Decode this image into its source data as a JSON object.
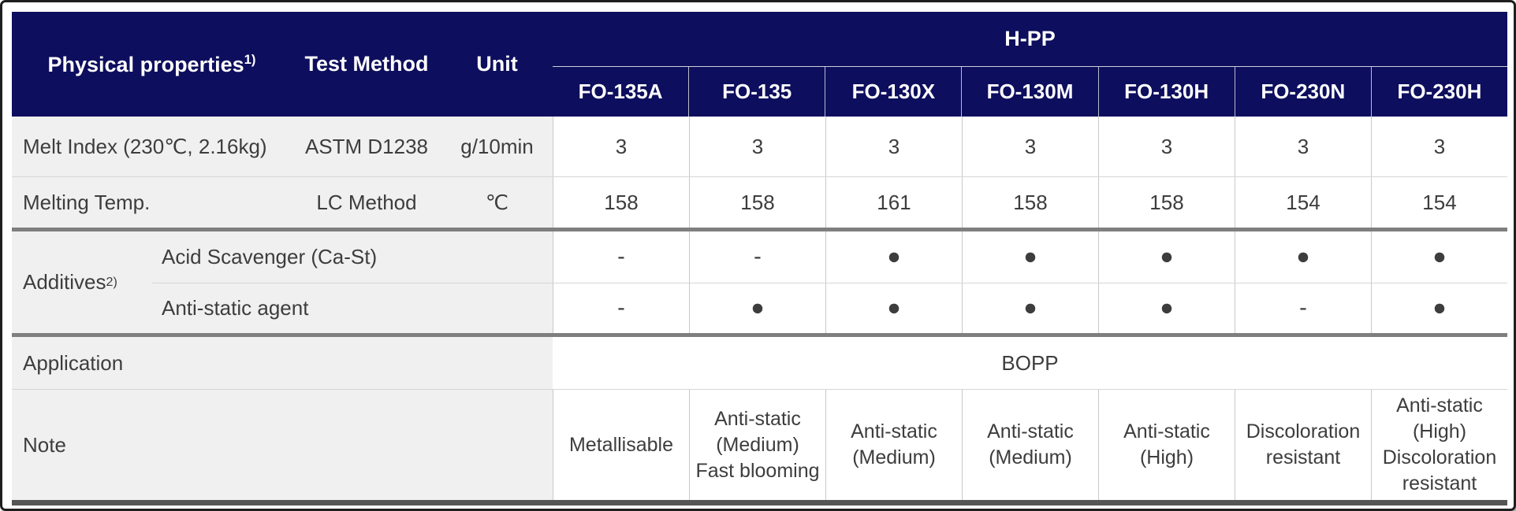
{
  "table": {
    "header": {
      "physical_properties": "Physical properties",
      "physical_properties_sup": "1)",
      "test_method": "Test Method",
      "unit": "Unit",
      "group": "H-PP",
      "grades": [
        "FO-135A",
        "FO-135",
        "FO-130X",
        "FO-130M",
        "FO-130H",
        "FO-230N",
        "FO-230H"
      ]
    },
    "rows": [
      {
        "property": "Melt Index (230℃, 2.16kg)",
        "method": "ASTM D1238",
        "unit": "g/10min",
        "values": [
          "3",
          "3",
          "3",
          "3",
          "3",
          "3",
          "3"
        ]
      },
      {
        "property": "Melting Temp.",
        "method": "LC Method",
        "unit": "℃",
        "values": [
          "158",
          "158",
          "161",
          "158",
          "158",
          "154",
          "154"
        ]
      }
    ],
    "additives": {
      "label": "Additives",
      "label_sup": "2)",
      "rows": [
        {
          "name": "Acid Scavenger (Ca-St)",
          "values": [
            "-",
            "-",
            "●",
            "●",
            "●",
            "●",
            "●"
          ]
        },
        {
          "name": "Anti-static agent",
          "values": [
            "-",
            "●",
            "●",
            "●",
            "●",
            "-",
            "●"
          ]
        }
      ]
    },
    "application": {
      "label": "Application",
      "value": "BOPP"
    },
    "note": {
      "label": "Note",
      "values": [
        "Metallisable",
        "Anti-static\n(Medium)\nFast blooming",
        "Anti-static\n(Medium)",
        "Anti-static\n(Medium)",
        "Anti-static\n(High)",
        "Discoloration\nresistant",
        "Anti-static\n(High)\nDiscoloration\nresistant"
      ]
    },
    "colors": {
      "header_bg": "#0e0e5e",
      "label_bg": "#f0f0f0",
      "section_divider": "#7f7f7f",
      "thin_line": "#d6d6d6",
      "bottom_line": "#555555",
      "header_text": "#ffffff",
      "body_text": "#3d3d3d"
    }
  }
}
